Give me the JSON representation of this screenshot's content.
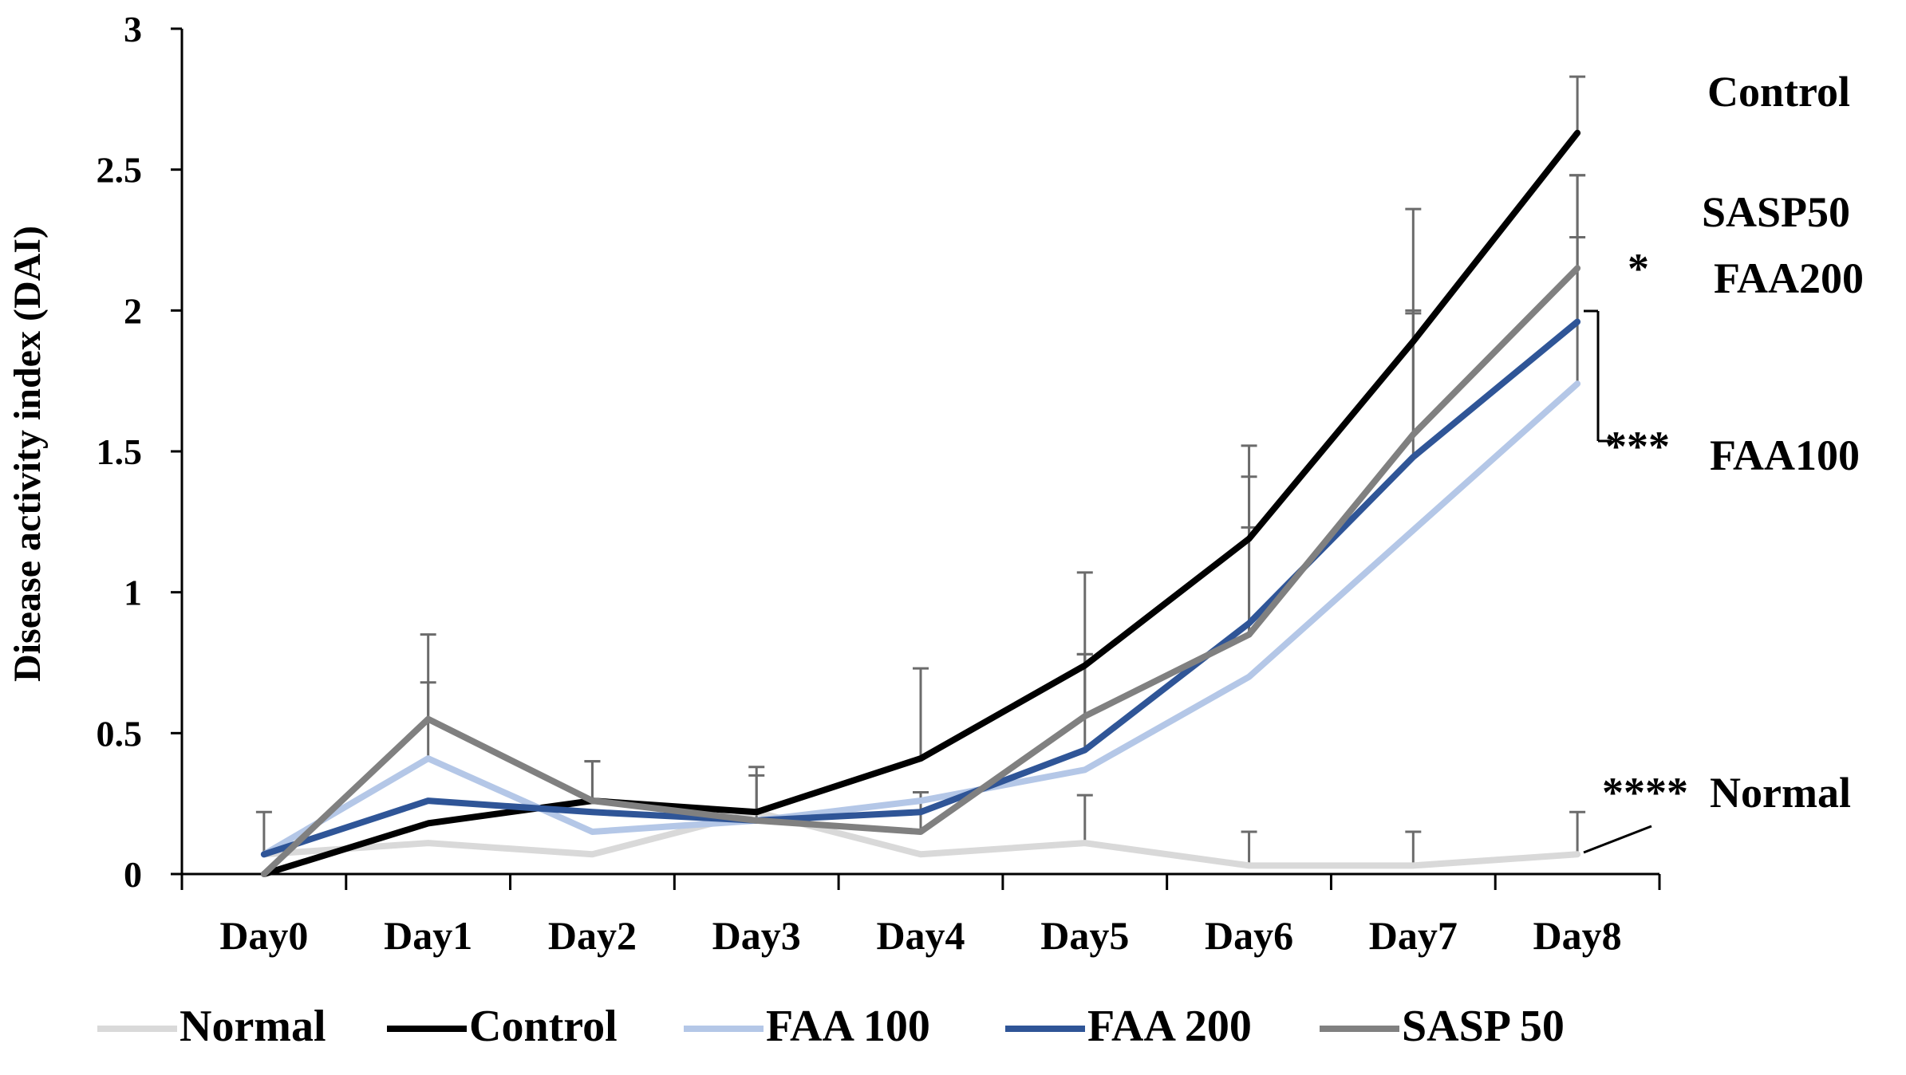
{
  "chart_data": {
    "type": "line",
    "title": "",
    "xlabel": "",
    "ylabel": "Disease activity index (DAI)",
    "categories": [
      "Day0",
      "Day1",
      "Day2",
      "Day3",
      "Day4",
      "Day5",
      "Day6",
      "Day7",
      "Day8"
    ],
    "ylim": [
      0,
      3
    ],
    "yticks": [
      "0",
      "0.5",
      "1",
      "1.5",
      "2",
      "2.5",
      "3"
    ],
    "grid": false,
    "legend_position": "bottom",
    "series": [
      {
        "name": "Normal",
        "color": "#d9d9d9",
        "values": [
          0.07,
          0.11,
          0.07,
          0.22,
          0.07,
          0.11,
          0.03,
          0.03,
          0.07
        ],
        "error": [
          0.15,
          0.0,
          0.0,
          0.0,
          0.0,
          0.17,
          0.12,
          0.12,
          0.15
        ]
      },
      {
        "name": "Control",
        "color": "#000000",
        "values": [
          0.0,
          0.18,
          0.26,
          0.22,
          0.41,
          0.74,
          1.19,
          1.89,
          2.63
        ],
        "error": [
          0.0,
          0.0,
          0.14,
          0.16,
          0.32,
          0.33,
          0.33,
          0.47,
          0.2
        ]
      },
      {
        "name": "FAA 100",
        "color": "#b4c7e7",
        "values": [
          0.07,
          0.41,
          0.15,
          0.19,
          0.26,
          0.37,
          0.7,
          1.22,
          1.74
        ],
        "error": [
          0.0,
          0.27,
          0.0,
          0.0,
          0.0,
          0.0,
          0.0,
          0.0,
          0.52
        ]
      },
      {
        "name": "FAA 200",
        "color": "#2f5597",
        "values": [
          0.07,
          0.26,
          0.22,
          0.19,
          0.22,
          0.44,
          0.89,
          1.48,
          1.96
        ],
        "error": [
          0.0,
          0.0,
          0.0,
          0.0,
          0.0,
          0.34,
          0.52,
          0.52,
          0.52
        ]
      },
      {
        "name": "SASP 50",
        "color": "#808080",
        "values": [
          0.0,
          0.55,
          0.26,
          0.19,
          0.15,
          0.56,
          0.85,
          1.56,
          2.15
        ],
        "error": [
          0.0,
          0.3,
          0.14,
          0.16,
          0.14,
          0.22,
          0.38,
          0.43,
          0.33
        ]
      }
    ],
    "annotations": {
      "control_label": "Control",
      "sasp_label": "SASP50",
      "faa200_star": "*",
      "faa200_label": "FAA200",
      "faa100_stars": "***",
      "faa100_label": "FAA100",
      "normal_stars": "****",
      "normal_label": "Normal"
    }
  }
}
